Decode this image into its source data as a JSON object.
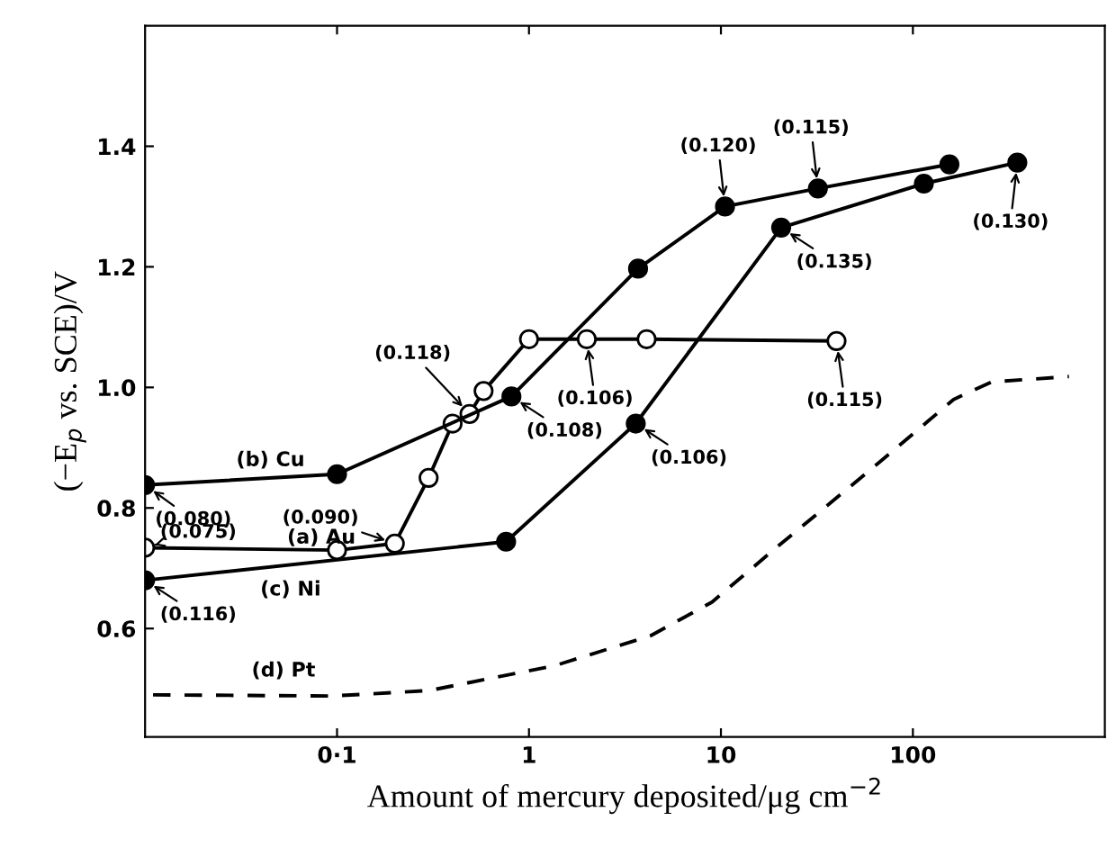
{
  "chart_data": {
    "type": "line",
    "xlabel": "Amount of mercury deposited/μg cm$^{−2}$",
    "ylabel": "(−E$_{p}$ vs. SCE)/V",
    "log": "x",
    "xlim": [
      0.01,
      1000
    ],
    "ylim": [
      0.42,
      1.6
    ],
    "xticks": [
      {
        "value": 0.1,
        "label": "0·1"
      },
      1,
      10,
      100
    ],
    "yticks": [
      0.6,
      0.8,
      {
        "value": 1.0,
        "label": "1.0"
      },
      1.2,
      1.4
    ],
    "grid": false,
    "legend": false,
    "marker": "circle",
    "series": [
      {
        "color": "#000000",
        "x": [
          0.01,
          0.1,
          0.2,
          0.3,
          0.4,
          0.49,
          0.58,
          1.0,
          2.0,
          4.1,
          40
        ],
        "values": [
          0.734,
          0.73,
          0.741,
          0.85,
          0.94,
          0.956,
          0.994,
          1.08,
          1.08,
          1.08,
          1.077
        ]
      },
      {
        "color": "#000000",
        "x": [
          0.01,
          0.1,
          0.81,
          3.7,
          10.5,
          32,
          155
        ],
        "values": [
          0.838,
          0.856,
          0.985,
          1.197,
          1.3,
          1.33,
          1.37
        ]
      },
      {
        "color": "#000000",
        "x": [
          0.01,
          0.76,
          3.6,
          20.6,
          114,
          350
        ],
        "values": [
          0.68,
          0.744,
          0.94,
          1.265,
          1.338,
          1.373
        ]
      },
      {
        "color": "#000000",
        "marker": "none",
        "line_style": "dashed",
        "x": [
          0.011,
          0.094,
          0.3,
          1.35,
          4.3,
          9,
          19.4,
          61,
          120,
          163,
          257,
          650
        ],
        "values": [
          0.49,
          0.488,
          0.497,
          0.538,
          0.588,
          0.644,
          0.734,
          0.865,
          0.944,
          0.98,
          1.009,
          1.018
        ]
      }
    ],
    "annotations": [
      "(a) Au",
      "(b) Cu",
      "(c) Ni",
      "(d) Pt",
      {
        "text": "(0.080)",
        "x": 0.01,
        "y": 0.838
      },
      {
        "text": "(0.075)",
        "x": 0.01,
        "y": 0.734
      },
      {
        "text": "(0.116)",
        "x": 0.01,
        "y": 0.68
      },
      {
        "text": "(0.090)",
        "x": 0.2,
        "y": 0.741
      },
      {
        "text": "(0.118)",
        "x": 0.49,
        "y": 0.956
      },
      {
        "text": "(0.108)",
        "x": 0.81,
        "y": 0.985
      },
      {
        "text": "(0.106)",
        "x": 2.0,
        "y": 1.08
      },
      {
        "text": "(0.115)",
        "x": 40,
        "y": 1.077
      },
      {
        "text": "(0.106)",
        "x": 3.6,
        "y": 0.94
      },
      {
        "text": "(0.120)",
        "x": 10.5,
        "y": 1.3
      },
      {
        "text": "(0.115)",
        "x": 32,
        "y": 1.33
      },
      {
        "text": "(0.135)",
        "x": 20.6,
        "y": 1.265
      },
      {
        "text": "(0.130)",
        "x": 350,
        "y": 1.373
      }
    ]
  }
}
